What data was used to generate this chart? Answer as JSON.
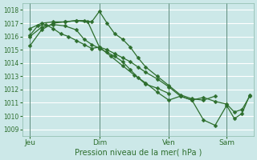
{
  "xlabel": "Pression niveau de la mer( hPa )",
  "bg_color": "#cce8e8",
  "grid_color": "#ffffff",
  "line_color": "#2d6e2d",
  "marker_color": "#2d6e2d",
  "ylim": [
    1008.5,
    1018.5
  ],
  "yticks": [
    1009,
    1010,
    1011,
    1012,
    1013,
    1014,
    1015,
    1016,
    1017,
    1018
  ],
  "xtick_labels": [
    "Jeu",
    "Dim",
    "Ven",
    "Sam"
  ],
  "xtick_positions": [
    0,
    18,
    36,
    51
  ],
  "xlim": [
    -2,
    58
  ],
  "series1_x": [
    0,
    2,
    4,
    6,
    8,
    10,
    12,
    14,
    16,
    18,
    20,
    22,
    24,
    26,
    28,
    30,
    33,
    36,
    39,
    42,
    45,
    48,
    51,
    53,
    55,
    57
  ],
  "series1_y": [
    1016.1,
    1016.8,
    1016.9,
    1016.6,
    1016.2,
    1016.0,
    1015.7,
    1015.4,
    1015.1,
    1015.2,
    1015.0,
    1014.7,
    1014.4,
    1014.1,
    1013.7,
    1013.3,
    1012.8,
    1012.2,
    1011.5,
    1011.2,
    1011.4,
    1011.1,
    1010.9,
    1010.3,
    1010.5,
    1011.5
  ],
  "series2_x": [
    0,
    3,
    6,
    9,
    12,
    14,
    16,
    18,
    20,
    22,
    24,
    26,
    28,
    30,
    33,
    36,
    39,
    42,
    45,
    48
  ],
  "series2_y": [
    1015.3,
    1016.5,
    1017.0,
    1017.1,
    1017.2,
    1017.2,
    1017.1,
    1017.9,
    1017.0,
    1016.2,
    1015.8,
    1015.2,
    1014.4,
    1013.7,
    1013.0,
    1012.3,
    1011.6,
    1011.3,
    1011.2,
    1011.5
  ],
  "series3_x": [
    0,
    3,
    6,
    9,
    12,
    14,
    16,
    18,
    20,
    22,
    24,
    26,
    28,
    30,
    33,
    36
  ],
  "series3_y": [
    1016.0,
    1016.7,
    1016.9,
    1016.8,
    1016.5,
    1015.8,
    1015.4,
    1015.1,
    1014.8,
    1014.5,
    1014.1,
    1013.5,
    1012.9,
    1012.4,
    1012.1,
    1011.7
  ],
  "series4_x": [
    0,
    3,
    6,
    9,
    12,
    15,
    18,
    21,
    24,
    27,
    30,
    33,
    36,
    39,
    42,
    45,
    48,
    51,
    53,
    55,
    57
  ],
  "series4_y": [
    1016.6,
    1017.0,
    1017.1,
    1017.1,
    1017.2,
    1017.1,
    1015.2,
    1014.5,
    1013.8,
    1013.1,
    1012.5,
    1011.8,
    1011.2,
    1011.5,
    1011.2,
    1009.7,
    1009.3,
    1010.8,
    1009.8,
    1010.2,
    1011.6
  ]
}
